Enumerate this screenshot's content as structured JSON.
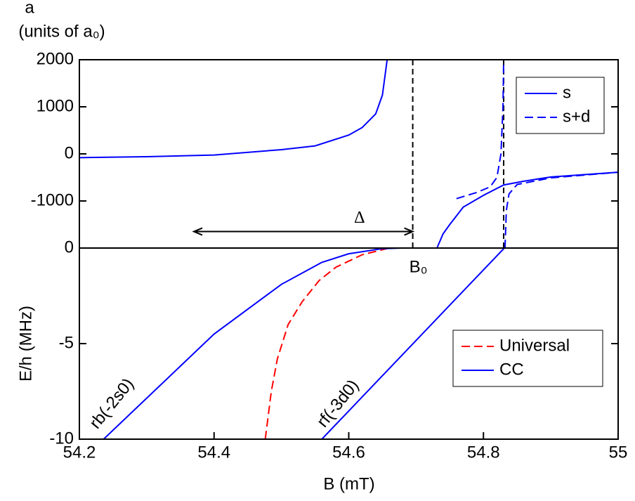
{
  "chart_data": [
    {
      "type": "line",
      "y_label_lines": [
        "a",
        "(units of a₀)"
      ],
      "xlim": [
        54.2,
        55
      ],
      "ylim": [
        -2000,
        2000
      ],
      "yticks": [
        -1000,
        0,
        1000,
        2000
      ],
      "legend": "upper right",
      "markers": [
        {
          "label": "B₀",
          "x": 54.695
        }
      ],
      "vlines": [
        54.83
      ],
      "span": {
        "label": "Δ",
        "x": [
          54.37,
          54.695
        ],
        "y": -1650
      },
      "series": [
        {
          "name": "s",
          "color": "#0000ff",
          "style": "solid",
          "x": [
            54.2,
            54.3,
            54.4,
            54.5,
            54.55,
            54.6,
            54.62,
            54.64,
            54.65,
            54.657,
            54.7,
            54.731,
            54.74,
            54.75,
            54.77,
            54.8,
            54.83,
            54.86,
            54.9,
            54.95,
            55
          ],
          "values": [
            -80,
            -60,
            -25,
            90,
            170,
            400,
            560,
            850,
            1250,
            2000,
            null,
            -2000,
            -1700,
            -1500,
            -1130,
            -880,
            -660,
            -580,
            -490,
            -440,
            -390
          ]
        },
        {
          "name": "s+d",
          "color": "#0000ff",
          "style": "dashed",
          "x": [
            54.76,
            54.79,
            54.81,
            54.82,
            54.826,
            54.829,
            54.83,
            54.831,
            54.832,
            54.834,
            54.838,
            54.85,
            54.9,
            55
          ],
          "values": [
            -950,
            -820,
            -700,
            -500,
            0,
            1000,
            2000,
            null,
            -2000,
            -1200,
            -850,
            -650,
            -510,
            -390
          ]
        }
      ]
    },
    {
      "type": "line",
      "y_label": "E/h (MHz)",
      "x_label": "B (mT)",
      "xlim": [
        54.2,
        55
      ],
      "ylim": [
        -10,
        0
      ],
      "yticks": [
        -10,
        -5,
        0
      ],
      "xticks": [
        54.2,
        54.4,
        54.6,
        54.8,
        55
      ],
      "legend": "center right",
      "annotations": [
        "rb(-2s0)",
        "rf(-3d0)"
      ],
      "series": [
        {
          "name": "Universal",
          "color": "#ff0000",
          "style": "dashed",
          "x": [
            54.476,
            54.485,
            54.494,
            54.51,
            54.531,
            54.556,
            54.581,
            54.62,
            54.66
          ],
          "values": [
            -10,
            -7.5,
            -5.8,
            -4,
            -2.8,
            -1.7,
            -1,
            -0.35,
            0
          ]
        },
        {
          "name": "CC",
          "color": "#0000ff",
          "style": "solid",
          "x": [
            54.236,
            54.4,
            54.5,
            54.56,
            54.6,
            54.65,
            54.68,
            54.6,
            54.56,
            54.831
          ],
          "values": [
            -10,
            -4.5,
            -1.9,
            -0.75,
            -0.3,
            -0.03,
            0,
            null,
            -10,
            0
          ]
        }
      ]
    }
  ]
}
